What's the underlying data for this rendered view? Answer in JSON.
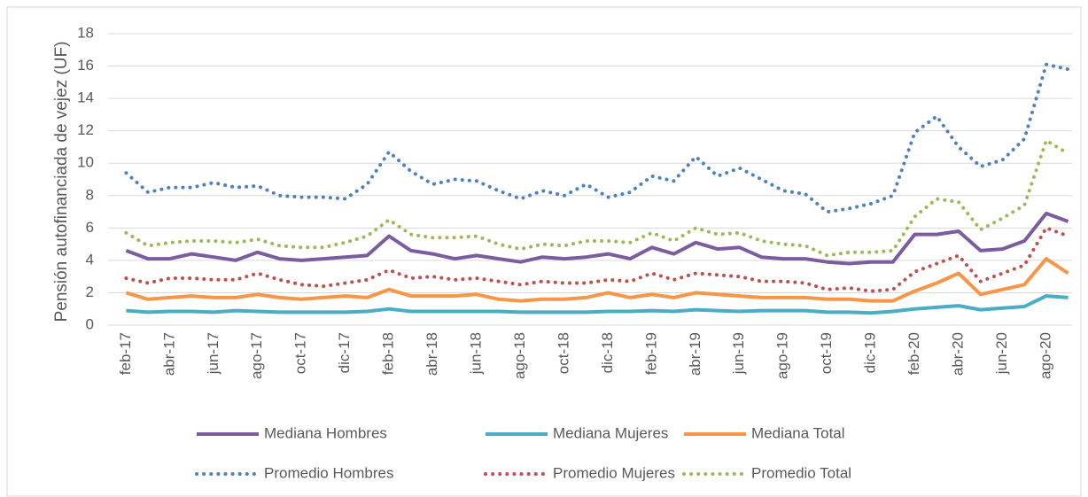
{
  "chart_data": {
    "type": "line",
    "y_label": "Pensión autofinanciada de vejez (UF)",
    "categories": [
      "feb-17",
      null,
      "abr-17",
      null,
      "jun-17",
      null,
      "ago-17",
      null,
      "oct-17",
      null,
      "dic-17",
      null,
      "feb-18",
      null,
      "abr-18",
      null,
      "jun-18",
      null,
      "ago-18",
      null,
      "oct-18",
      null,
      "dic-18",
      null,
      "feb-19",
      null,
      "abr-19",
      null,
      "jun-19",
      null,
      "ago-19",
      null,
      "oct-19",
      null,
      "dic-19",
      null,
      "feb-20",
      null,
      "abr-20",
      null,
      "jun-20",
      null,
      "ago-20",
      null
    ],
    "ylim": [
      0,
      18
    ],
    "yticks": [
      0,
      2,
      4,
      6,
      8,
      10,
      12,
      14,
      16,
      18
    ],
    "grid": true,
    "legend": "bottom",
    "series": [
      {
        "name": "Mediana Hombres",
        "color": "#7a5ca0",
        "style": "solid",
        "values": [
          4.6,
          4.1,
          4.1,
          4.4,
          4.2,
          4.0,
          4.5,
          4.1,
          4.0,
          4.1,
          4.2,
          4.3,
          5.5,
          4.6,
          4.4,
          4.1,
          4.3,
          4.1,
          3.9,
          4.2,
          4.1,
          4.2,
          4.4,
          4.1,
          4.8,
          4.4,
          5.1,
          4.7,
          4.8,
          4.2,
          4.1,
          4.1,
          3.9,
          3.8,
          3.9,
          3.9,
          5.6,
          5.6,
          5.8,
          4.6,
          4.7,
          5.2,
          6.9,
          6.4
        ]
      },
      {
        "name": "Mediana Mujeres",
        "color": "#4bacc6",
        "style": "solid",
        "values": [
          0.9,
          0.8,
          0.85,
          0.85,
          0.8,
          0.9,
          0.85,
          0.8,
          0.8,
          0.8,
          0.8,
          0.85,
          1.0,
          0.85,
          0.85,
          0.85,
          0.85,
          0.85,
          0.8,
          0.8,
          0.8,
          0.8,
          0.85,
          0.85,
          0.9,
          0.85,
          0.95,
          0.9,
          0.85,
          0.9,
          0.9,
          0.9,
          0.8,
          0.8,
          0.75,
          0.85,
          1.0,
          1.1,
          1.2,
          0.95,
          1.05,
          1.15,
          1.8,
          1.7
        ]
      },
      {
        "name": "Mediana Total",
        "color": "#f79646",
        "style": "solid",
        "values": [
          2.0,
          1.6,
          1.7,
          1.8,
          1.7,
          1.7,
          1.9,
          1.7,
          1.6,
          1.7,
          1.8,
          1.7,
          2.2,
          1.8,
          1.8,
          1.8,
          1.9,
          1.6,
          1.5,
          1.6,
          1.6,
          1.7,
          2.0,
          1.7,
          1.9,
          1.7,
          2.0,
          1.9,
          1.8,
          1.7,
          1.7,
          1.7,
          1.6,
          1.6,
          1.5,
          1.5,
          2.1,
          2.6,
          3.2,
          1.9,
          2.2,
          2.5,
          4.1,
          3.2
        ]
      },
      {
        "name": "Promedio Hombres",
        "color": "#4f81bd",
        "style": "dotted",
        "values": [
          9.4,
          8.2,
          8.5,
          8.5,
          8.8,
          8.5,
          8.6,
          8.0,
          7.9,
          7.9,
          7.8,
          8.7,
          10.7,
          9.5,
          8.7,
          9.0,
          8.9,
          8.3,
          7.8,
          8.3,
          8.0,
          8.7,
          7.9,
          8.2,
          9.2,
          8.9,
          10.4,
          9.2,
          9.7,
          9.0,
          8.3,
          8.1,
          7.0,
          7.2,
          7.5,
          8.0,
          11.9,
          12.9,
          11.0,
          9.8,
          10.2,
          11.5,
          16.1,
          15.8
        ]
      },
      {
        "name": "Promedio Mujeres",
        "color": "#c0504d",
        "style": "dotted",
        "values": [
          2.9,
          2.6,
          2.9,
          2.9,
          2.8,
          2.8,
          3.2,
          2.8,
          2.5,
          2.4,
          2.6,
          2.8,
          3.4,
          2.9,
          3.0,
          2.8,
          2.9,
          2.7,
          2.5,
          2.7,
          2.6,
          2.6,
          2.8,
          2.7,
          3.2,
          2.8,
          3.2,
          3.1,
          3.0,
          2.7,
          2.7,
          2.6,
          2.2,
          2.3,
          2.1,
          2.2,
          3.3,
          3.8,
          4.3,
          2.7,
          3.2,
          3.7,
          6.0,
          5.5
        ]
      },
      {
        "name": "Promedio Total",
        "color": "#9bbb59",
        "style": "dotted",
        "values": [
          5.7,
          4.9,
          5.1,
          5.2,
          5.2,
          5.1,
          5.3,
          4.9,
          4.8,
          4.8,
          5.1,
          5.5,
          6.5,
          5.6,
          5.4,
          5.4,
          5.5,
          5.0,
          4.7,
          5.0,
          4.9,
          5.2,
          5.2,
          5.1,
          5.7,
          5.2,
          6.0,
          5.6,
          5.7,
          5.2,
          5.0,
          4.9,
          4.3,
          4.5,
          4.5,
          4.6,
          6.7,
          7.8,
          7.6,
          5.9,
          6.6,
          7.4,
          11.4,
          10.6
        ]
      }
    ]
  }
}
